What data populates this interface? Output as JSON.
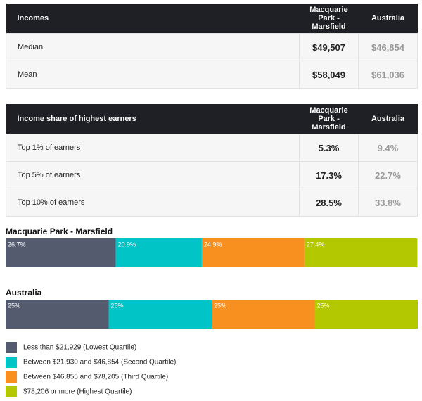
{
  "tables": [
    {
      "header": [
        "Incomes",
        "Macquarie Park - Marsfield",
        "Australia"
      ],
      "rows": [
        [
          "Median",
          "$49,507",
          "$46,854"
        ],
        [
          "Mean",
          "$58,049",
          "$61,036"
        ]
      ]
    },
    {
      "header": [
        "Income share of highest earners",
        "Macquarie Park - Marsfield",
        "Australia"
      ],
      "rows": [
        [
          "Top 1% of earners",
          "5.3%",
          "9.4%"
        ],
        [
          "Top 5% of earners",
          "17.3%",
          "22.7%"
        ],
        [
          "Top 10% of earners",
          "28.5%",
          "33.8%"
        ]
      ]
    }
  ],
  "chart_data": [
    {
      "type": "stacked-bar",
      "title": "Macquarie Park - Marsfield",
      "xlim": [
        0,
        100
      ],
      "values": [
        26.7,
        20.9,
        24.9,
        27.4
      ],
      "value_labels": [
        "26.7%",
        "20.9%",
        "24.9%",
        "27.4%"
      ]
    },
    {
      "type": "stacked-bar",
      "title": "Australia",
      "xlim": [
        0,
        100
      ],
      "values": [
        25,
        25,
        25,
        25
      ],
      "value_labels": [
        "25%",
        "25%",
        "25%",
        "25%"
      ]
    }
  ],
  "legend": [
    {
      "name": "Less than $21,929 (Lowest Quartile)",
      "color": "#555b6e"
    },
    {
      "name": "Between $21,930 and $46,854 (Second Quartile)",
      "color": "#00c4c6"
    },
    {
      "name": "Between $46,855 and $78,205 (Third Quartile)",
      "color": "#f7901e"
    },
    {
      "name": "$78,206 or more (Highest Quartile)",
      "color": "#b4c800"
    }
  ]
}
